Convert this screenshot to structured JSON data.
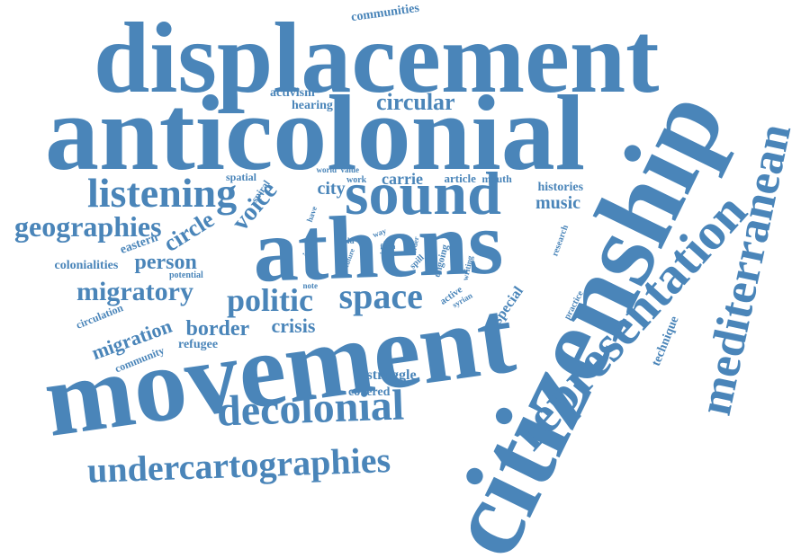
{
  "palette": {
    "word": "#4a85b9",
    "background": "#ffffff"
  },
  "words": [
    {
      "t": "displacement",
      "s": 112
    },
    {
      "t": "anticolonial",
      "s": 120
    },
    {
      "t": "citizenship",
      "s": 122
    },
    {
      "t": "movement",
      "s": 118
    },
    {
      "t": "athens",
      "s": 100
    },
    {
      "t": "sound",
      "s": 68
    },
    {
      "t": "representation",
      "s": 58
    },
    {
      "t": "mediterranean",
      "s": 52
    },
    {
      "t": "decolonial",
      "s": 48
    },
    {
      "t": "listening",
      "s": 46
    },
    {
      "t": "undercartographies",
      "s": 40
    },
    {
      "t": "space",
      "s": 40
    },
    {
      "t": "geographies",
      "s": 32
    },
    {
      "t": "politic",
      "s": 36
    },
    {
      "t": "migratory",
      "s": 30
    },
    {
      "t": "circular",
      "s": 26
    },
    {
      "t": "voice",
      "s": 28
    },
    {
      "t": "circle",
      "s": 26
    },
    {
      "t": "person",
      "s": 24
    },
    {
      "t": "border",
      "s": 24
    },
    {
      "t": "crisis",
      "s": 22
    },
    {
      "t": "migration",
      "s": 22
    },
    {
      "t": "music",
      "s": 20
    },
    {
      "t": "city",
      "s": 20
    },
    {
      "t": "carrie",
      "s": 18
    },
    {
      "t": "special",
      "s": 16
    },
    {
      "t": "struggle",
      "s": 16
    },
    {
      "t": "histories",
      "s": 14
    },
    {
      "t": "communities",
      "s": 14
    },
    {
      "t": "activism",
      "s": 14
    },
    {
      "t": "hearing",
      "s": 14
    },
    {
      "t": "colonialities",
      "s": 14
    },
    {
      "t": "refugee",
      "s": 14
    },
    {
      "t": "covered",
      "s": 14
    },
    {
      "t": "technique",
      "s": 14
    },
    {
      "t": "eastern",
      "s": 14
    },
    {
      "t": "article",
      "s": 13
    },
    {
      "t": "mouth",
      "s": 12
    },
    {
      "t": "spatial",
      "s": 12
    },
    {
      "t": "spiral",
      "s": 11
    },
    {
      "t": "circulation",
      "s": 12
    },
    {
      "t": "community",
      "s": 12
    },
    {
      "t": "potential",
      "s": 10
    },
    {
      "t": "issue",
      "s": 11
    },
    {
      "t": "ongoing",
      "s": 11
    },
    {
      "t": "research",
      "s": 10
    },
    {
      "t": "practice",
      "s": 10
    },
    {
      "t": "active",
      "s": 11
    },
    {
      "t": "syrian",
      "s": 9
    },
    {
      "t": "writing",
      "s": 9
    },
    {
      "t": "spill",
      "s": 10
    },
    {
      "t": "world",
      "s": 9
    },
    {
      "t": "value",
      "s": 9
    },
    {
      "t": "work",
      "s": 10
    },
    {
      "t": "have",
      "s": 9
    },
    {
      "t": "fold",
      "s": 9
    },
    {
      "t": "idea",
      "s": 9
    },
    {
      "t": "way",
      "s": 9
    },
    {
      "t": "form",
      "s": 8
    },
    {
      "t": "order",
      "s": 8
    },
    {
      "t": "future",
      "s": 8
    },
    {
      "t": "note",
      "s": 9
    }
  ]
}
